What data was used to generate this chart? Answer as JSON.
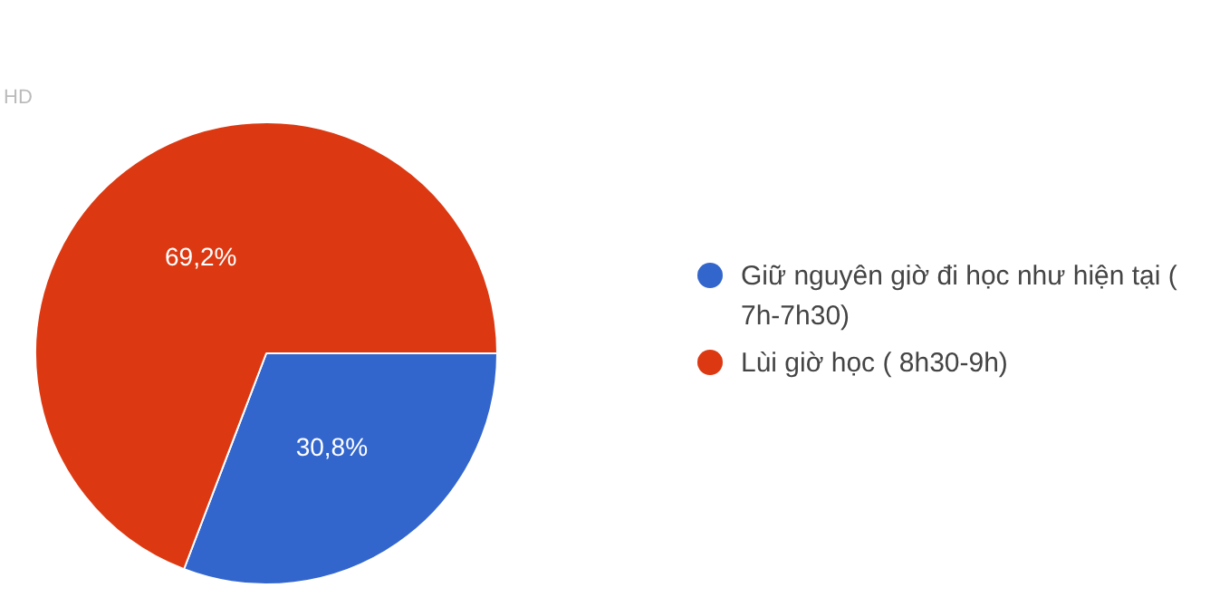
{
  "chart_data": {
    "type": "pie",
    "categories": [
      "Giữ nguyên giờ đi học như hiện tại ( 7h-7h30)",
      "Lùi giờ học ( 8h30-9h)"
    ],
    "values": [
      30.8,
      69.2
    ],
    "colors": [
      "#3366cc",
      "#dc3912"
    ],
    "value_labels": [
      "30,8%",
      "69,2%"
    ],
    "legend": "right",
    "annotations": [
      "HD"
    ]
  }
}
